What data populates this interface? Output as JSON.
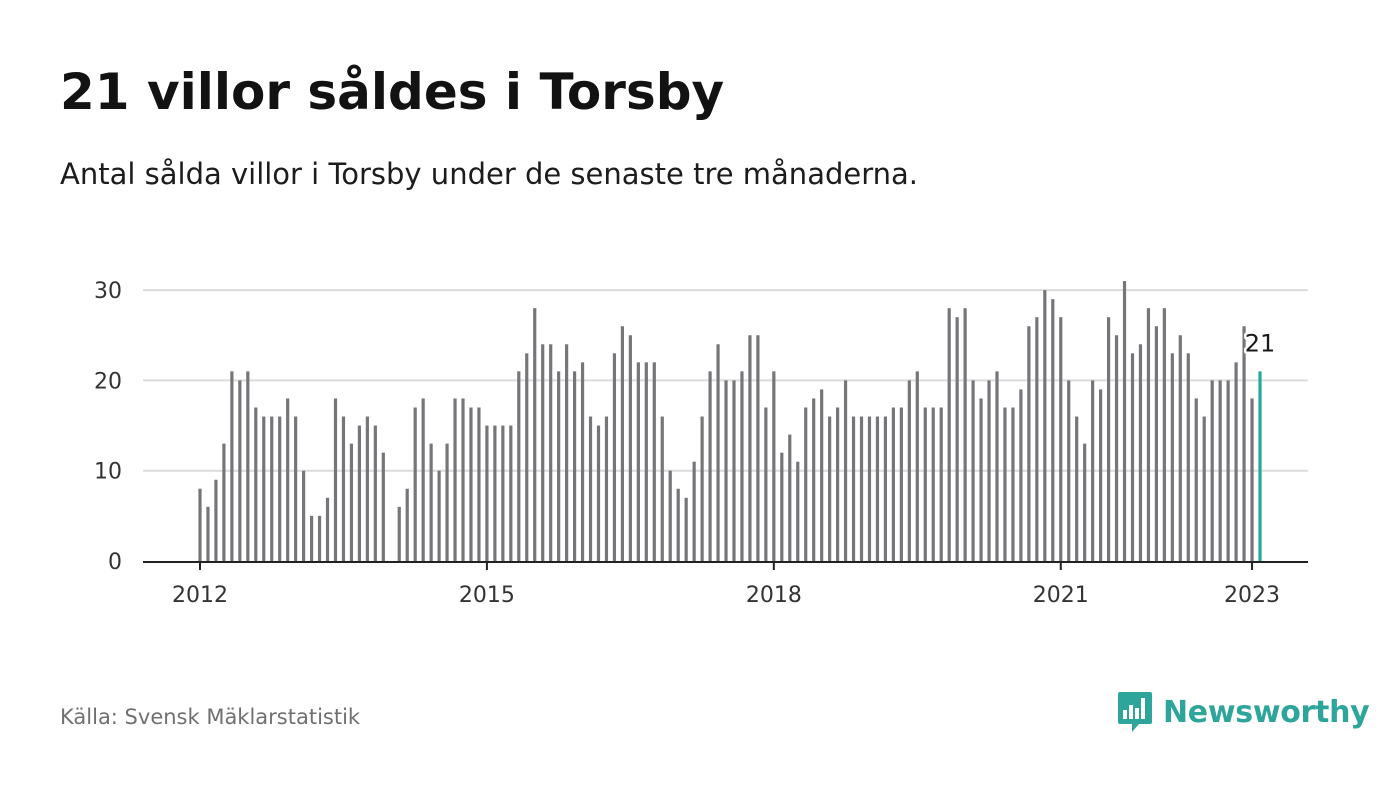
{
  "header": {
    "title": "21 villor såldes i Torsby",
    "subtitle": "Antal sålda villor i Torsby under de senaste tre månaderna."
  },
  "footer": {
    "source": "Källa: Svensk Mäklarstatistik",
    "brand": "Newsworthy"
  },
  "colors": {
    "bar": "#76767a",
    "highlight": "#25a89a",
    "grid": "#dcdcdc",
    "axis": "#222222",
    "brand": "#2ea59b"
  },
  "chart_data": {
    "type": "bar",
    "x_start": "2012-01",
    "x_tick_labels": [
      "2012",
      "2015",
      "2018",
      "2021",
      "2023"
    ],
    "x_tick_months": [
      "2012-01",
      "2015-01",
      "2018-01",
      "2021-01",
      "2023-01"
    ],
    "y_ticks": [
      0,
      10,
      20,
      30
    ],
    "ylim": [
      0,
      31
    ],
    "grid": true,
    "values": [
      8,
      6,
      9,
      13,
      21,
      20,
      21,
      17,
      16,
      16,
      16,
      18,
      16,
      10,
      5,
      5,
      7,
      18,
      16,
      13,
      15,
      16,
      15,
      12,
      null,
      6,
      8,
      17,
      18,
      13,
      10,
      13,
      18,
      18,
      17,
      17,
      15,
      15,
      15,
      15,
      21,
      23,
      28,
      24,
      24,
      21,
      24,
      21,
      22,
      16,
      15,
      16,
      23,
      26,
      25,
      22,
      22,
      22,
      16,
      10,
      8,
      7,
      11,
      16,
      21,
      24,
      20,
      20,
      21,
      25,
      25,
      17,
      21,
      12,
      14,
      11,
      17,
      18,
      19,
      16,
      17,
      20,
      16,
      16,
      16,
      16,
      16,
      17,
      17,
      20,
      21,
      17,
      17,
      17,
      28,
      27,
      28,
      20,
      18,
      20,
      21,
      17,
      17,
      19,
      26,
      27,
      30,
      29,
      27,
      20,
      16,
      13,
      20,
      19,
      27,
      25,
      31,
      23,
      24,
      28,
      26,
      28,
      23,
      25,
      23,
      18,
      16,
      20,
      20,
      20,
      22,
      26,
      18,
      21
    ],
    "highlight_label": "21"
  }
}
